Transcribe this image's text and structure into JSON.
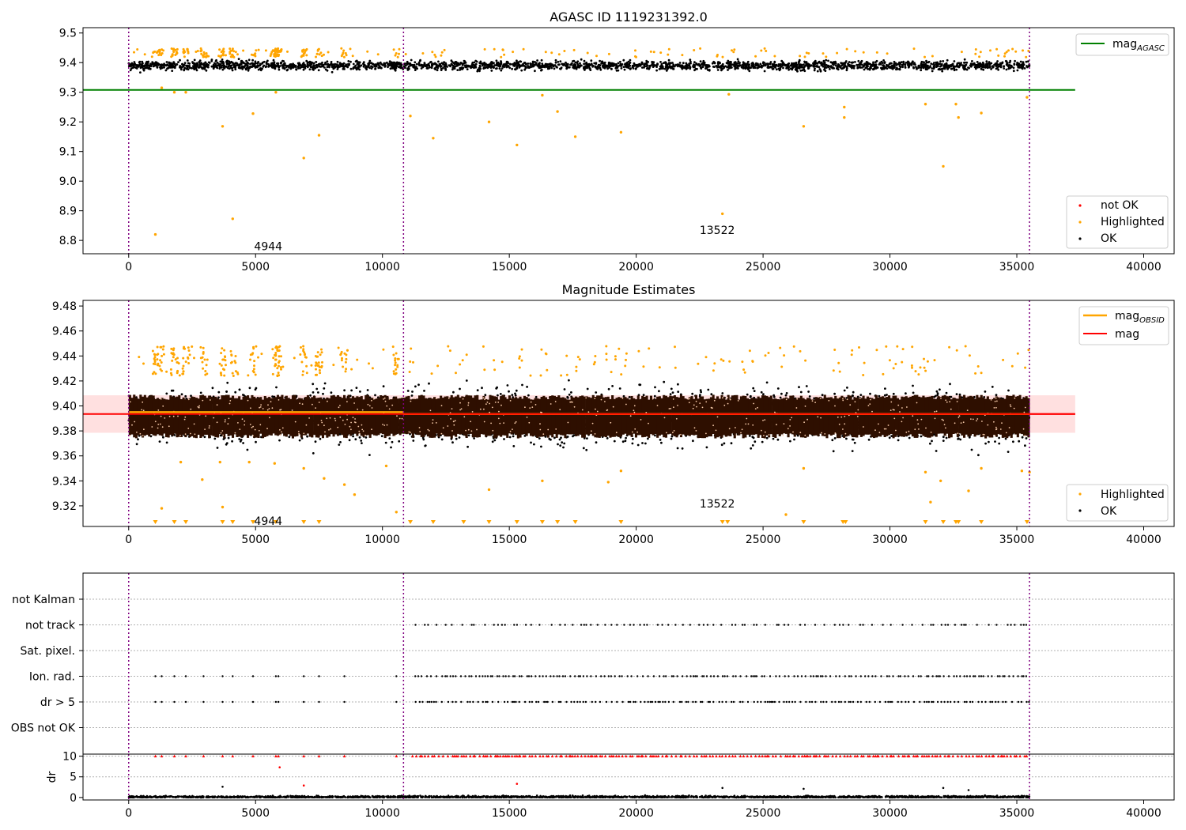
{
  "chart_data": [
    {
      "type": "scatter",
      "title": "AGASC ID 1119231392.0",
      "xlim": [
        -1800,
        41200
      ],
      "ylim": [
        8.755,
        9.518
      ],
      "xticks": [
        0,
        5000,
        10000,
        15000,
        20000,
        25000,
        30000,
        35000,
        40000
      ],
      "yticks": [
        8.8,
        8.9,
        9.0,
        9.1,
        9.2,
        9.3,
        9.4,
        9.5
      ],
      "vlines": [
        0,
        10830,
        35500
      ],
      "hline": {
        "name": "mag_AGASC",
        "value": 9.308,
        "x_range": [
          -1800,
          37300
        ],
        "color": "#008000"
      },
      "ok_band": {
        "x_range": [
          0,
          35500
        ],
        "y_center": 9.39,
        "y_spread": 0.026
      },
      "highlighted_points": [
        {
          "x": 1050,
          "y": 8.82
        },
        {
          "x": 1300,
          "y": 9.315
        },
        {
          "x": 1800,
          "y": 9.3
        },
        {
          "x": 2250,
          "y": 9.3
        },
        {
          "x": 3700,
          "y": 9.185
        },
        {
          "x": 4100,
          "y": 8.873
        },
        {
          "x": 4900,
          "y": 9.228
        },
        {
          "x": 5800,
          "y": 9.3
        },
        {
          "x": 6900,
          "y": 9.078
        },
        {
          "x": 7500,
          "y": 9.155
        },
        {
          "x": 11100,
          "y": 9.22
        },
        {
          "x": 12000,
          "y": 9.145
        },
        {
          "x": 14200,
          "y": 9.2
        },
        {
          "x": 15300,
          "y": 9.122
        },
        {
          "x": 16300,
          "y": 9.29
        },
        {
          "x": 16900,
          "y": 9.235
        },
        {
          "x": 17600,
          "y": 9.15
        },
        {
          "x": 19400,
          "y": 9.165
        },
        {
          "x": 23400,
          "y": 8.89
        },
        {
          "x": 23650,
          "y": 9.293
        },
        {
          "x": 26600,
          "y": 9.185
        },
        {
          "x": 28200,
          "y": 9.215
        },
        {
          "x": 28200,
          "y": 9.25
        },
        {
          "x": 31400,
          "y": 9.26
        },
        {
          "x": 32100,
          "y": 9.05
        },
        {
          "x": 32600,
          "y": 9.26
        },
        {
          "x": 32700,
          "y": 9.215
        },
        {
          "x": 33600,
          "y": 9.23
        },
        {
          "x": 35400,
          "y": 9.283
        }
      ],
      "annotations": [
        {
          "text": "4944",
          "x": 4944,
          "y": 8.78
        },
        {
          "text": "13522",
          "x": 22500,
          "y": 8.835
        }
      ],
      "legend_line": {
        "label": "mag",
        "sub": "AGASC",
        "color": "#008000"
      },
      "legend_points": [
        {
          "label": "not OK",
          "color": "#ff0000"
        },
        {
          "label": "Highlighted",
          "color": "#ffa500"
        },
        {
          "label": "OK",
          "color": "#000000"
        }
      ]
    },
    {
      "type": "scatter",
      "title": "Magnitude Estimates",
      "xlim": [
        -1800,
        41200
      ],
      "ylim": [
        9.3035,
        9.4845
      ],
      "xticks": [
        0,
        5000,
        10000,
        15000,
        20000,
        25000,
        30000,
        35000,
        40000
      ],
      "yticks": [
        9.32,
        9.34,
        9.36,
        9.38,
        9.4,
        9.42,
        9.44,
        9.46,
        9.48
      ],
      "vlines": [
        0,
        10830,
        35500
      ],
      "mag_line": {
        "name": "mag",
        "value": 9.3935,
        "x_range": [
          -1800,
          37300
        ],
        "color": "#ff0000"
      },
      "mag_band": {
        "low": 9.3785,
        "high": 9.4085,
        "color": "#ffe0e0"
      },
      "mag_obsid": [
        {
          "x_range": [
            0,
            10830
          ],
          "value": 9.395
        },
        {
          "x_range": [
            10830,
            35500
          ],
          "value": 9.3935
        }
      ],
      "dense_band": {
        "x_range": [
          0,
          35500
        ],
        "low": 9.376,
        "high": 9.407,
        "color": "#2e0f00"
      },
      "ok_spread": {
        "low": 9.352,
        "high": 9.432
      },
      "highlighted_points": [
        {
          "x": 1300,
          "y": 9.318
        },
        {
          "x": 2050,
          "y": 9.355
        },
        {
          "x": 2900,
          "y": 9.341
        },
        {
          "x": 3700,
          "y": 9.319
        },
        {
          "x": 3600,
          "y": 9.355
        },
        {
          "x": 4750,
          "y": 9.355
        },
        {
          "x": 5750,
          "y": 9.354
        },
        {
          "x": 6900,
          "y": 9.35
        },
        {
          "x": 7700,
          "y": 9.342
        },
        {
          "x": 8500,
          "y": 9.337
        },
        {
          "x": 8900,
          "y": 9.329
        },
        {
          "x": 10550,
          "y": 9.315
        },
        {
          "x": 10150,
          "y": 9.352
        },
        {
          "x": 14200,
          "y": 9.333
        },
        {
          "x": 16300,
          "y": 9.34
        },
        {
          "x": 18900,
          "y": 9.339
        },
        {
          "x": 19400,
          "y": 9.348
        },
        {
          "x": 25900,
          "y": 9.313
        },
        {
          "x": 26600,
          "y": 9.35
        },
        {
          "x": 31400,
          "y": 9.347
        },
        {
          "x": 32000,
          "y": 9.34
        },
        {
          "x": 31600,
          "y": 9.323
        },
        {
          "x": 33100,
          "y": 9.332
        },
        {
          "x": 33600,
          "y": 9.35
        },
        {
          "x": 35200,
          "y": 9.348
        },
        {
          "x": 35500,
          "y": 9.347
        }
      ],
      "offscale_markers_x": [
        1050,
        1800,
        2250,
        3700,
        4100,
        4900,
        5800,
        6900,
        7500,
        11100,
        12000,
        13200,
        14200,
        15300,
        16300,
        16900,
        17600,
        19400,
        23400,
        23600,
        26600,
        28150,
        28250,
        31400,
        32100,
        32600,
        32700,
        33600,
        35400
      ],
      "annotations": [
        {
          "text": "4944",
          "x": 4944,
          "y": 9.308
        },
        {
          "text": "13522",
          "x": 22500,
          "y": 9.322
        }
      ],
      "legend_lines": [
        {
          "label": "mag",
          "sub": "OBSID",
          "color": "#ffa500"
        },
        {
          "label": "mag",
          "sub": "",
          "color": "#ff0000"
        }
      ],
      "legend_points": [
        {
          "label": "Highlighted",
          "color": "#ffa500"
        },
        {
          "label": "OK",
          "color": "#000000"
        }
      ]
    },
    {
      "type": "scatter",
      "title": "",
      "xlim": [
        -1800,
        41200
      ],
      "categories": [
        "not Kalman",
        "not track",
        "Sat. pixel.",
        "Ion. rad.",
        "dr > 5",
        "OBS not OK"
      ],
      "vlines": [
        0,
        10830,
        35500
      ],
      "flag_rows": {
        "not track": {
          "x_range": [
            10830,
            35500
          ],
          "density": "sparse"
        },
        "Ion. rad.": {
          "x_range": [
            0,
            35500
          ],
          "density": "medium"
        },
        "dr > 5": {
          "x_range": [
            0,
            35500
          ],
          "density": "medium"
        }
      },
      "early_flag_x": [
        1050,
        1300,
        1800,
        2250,
        2950,
        3700,
        4100,
        4900,
        5800,
        5900,
        6900,
        7500,
        8500,
        10550
      ]
    },
    {
      "type": "scatter",
      "title": "",
      "ylabel": "dr",
      "xlim": [
        -1800,
        41200
      ],
      "ylim": [
        -0.6,
        10.5
      ],
      "yticks": [
        0,
        5,
        10
      ],
      "xticks": [
        0,
        5000,
        10000,
        15000,
        20000,
        25000,
        30000,
        35000,
        40000
      ],
      "vlines": [
        0,
        10830,
        35500
      ],
      "clipped_value": 10,
      "outlier_points": [
        {
          "x": 5950,
          "y": 7.3,
          "color": "#ff0000"
        },
        {
          "x": 6900,
          "y": 2.9,
          "color": "#ff0000"
        },
        {
          "x": 15300,
          "y": 3.3,
          "color": "#ff0000"
        },
        {
          "x": 3700,
          "y": 2.6,
          "color": "#000000"
        },
        {
          "x": 23400,
          "y": 2.3,
          "color": "#000000"
        },
        {
          "x": 26600,
          "y": 2.1,
          "color": "#000000"
        },
        {
          "x": 32100,
          "y": 2.3,
          "color": "#000000"
        },
        {
          "x": 33100,
          "y": 1.8,
          "color": "#000000"
        }
      ]
    }
  ]
}
